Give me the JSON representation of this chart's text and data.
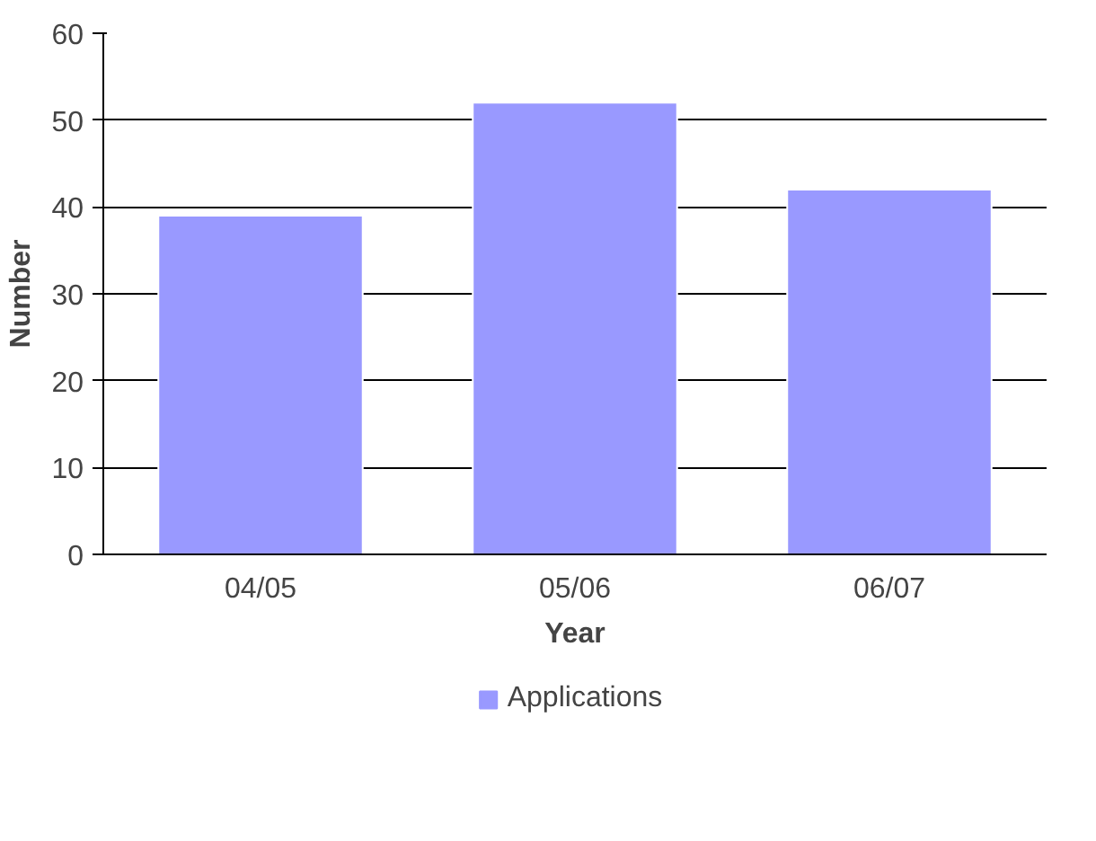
{
  "chart_data": {
    "type": "bar",
    "xlabel": "Year",
    "ylabel": "Number",
    "categories": [
      "04/05",
      "05/06",
      "06/07"
    ],
    "series": [
      {
        "name": "Applications",
        "color": "#9999ff",
        "values": [
          39,
          52,
          42
        ]
      }
    ],
    "ylim": [
      0,
      60
    ],
    "yticks": [
      0,
      10,
      20,
      30,
      40,
      50,
      60
    ],
    "grid": "y",
    "legend": "bottom"
  }
}
